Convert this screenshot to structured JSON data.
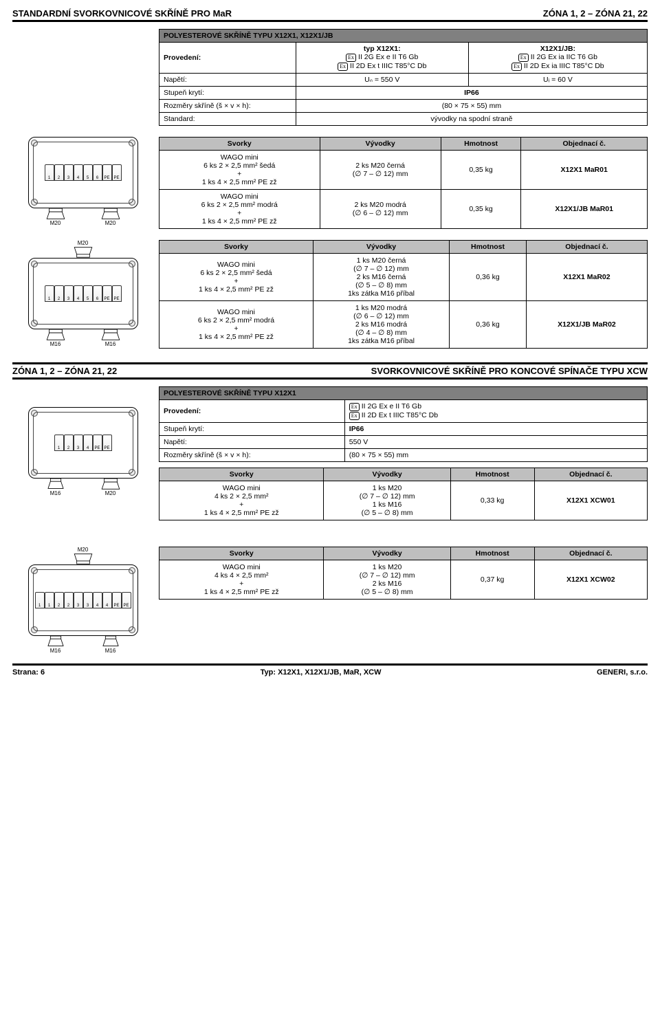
{
  "colors": {
    "header_gray": "#bfbfbf",
    "title_gray": "#808080",
    "border": "#000000",
    "bg": "#ffffff"
  },
  "topHeader": {
    "left": "STANDARDNÍ SVORKOVNICOVÉ SKŘÍNĚ PRO MaR",
    "right": "ZÓNA 1, 2 – ZÓNA 21, 22"
  },
  "specBox1": {
    "title": "POLYESTEROVÉ SKŘÍNĚ TYPU X12X1, X12X1/JB",
    "provedeni_label": "Provedení:",
    "col1_head": "typ X12X1:",
    "col1_l1": "II 2G Ex e II T6 Gb",
    "col1_l2": "II 2D Ex t  IIIC T85°C Db",
    "col2_head": "X12X1/JB:",
    "col2_l1": "II 2G Ex ia IIC T6 Gb",
    "col2_l2": "II 2D Ex ia IIIC T85°C Db",
    "napeti_label": "Napětí:",
    "napeti_v1": "Uₙ = 550 V",
    "napeti_v2": "Uᵢ = 60 V",
    "stupen_label": "Stupeň krytí:",
    "stupen_val": "IP66",
    "rozmery_label": "Rozměry skříně (š × v × h):",
    "rozmery_val": "(80 × 75 × 55) mm",
    "standard_label": "Standard:",
    "standard_val": "vývodky na spodní straně"
  },
  "diagram1": {
    "terminals": [
      "1",
      "2",
      "3",
      "4",
      "5",
      "6",
      "PE",
      "PE"
    ],
    "gland_b1": "M20",
    "gland_b2": "M20"
  },
  "diagram2": {
    "gland_top": "M20",
    "terminals": [
      "1",
      "2",
      "3",
      "4",
      "5",
      "6",
      "PE",
      "PE"
    ],
    "gland_b1": "M16",
    "gland_b2": "M16"
  },
  "dataHeaders": {
    "svorky": "Svorky",
    "vyvodky": "Vývodky",
    "hmotnost": "Hmotnost",
    "obj": "Objednací č."
  },
  "table1": {
    "rows": [
      {
        "svorky": "WAGO mini\n6 ks 2 × 2,5 mm² šedá\n+\n1 ks 4 × 2,5 mm² PE zž",
        "vyvodky": "2 ks M20 černá\n(∅ 7 – ∅ 12) mm",
        "hmotnost": "0,35 kg",
        "obj": "X12X1 MaR01"
      },
      {
        "svorky": "WAGO mini\n6 ks 2 × 2,5 mm² modrá\n+\n1 ks 4 × 2,5 mm² PE zž",
        "vyvodky": "2 ks M20 modrá\n(∅ 6 – ∅ 12) mm",
        "hmotnost": "0,35 kg",
        "obj": "X12X1/JB MaR01"
      }
    ]
  },
  "table2": {
    "rows": [
      {
        "svorky": "WAGO mini\n6 ks 2 × 2,5 mm² šedá\n+\n1 ks 4 × 2,5 mm² PE zž",
        "vyvodky": "1 ks M20 černá\n(∅ 7 – ∅ 12) mm\n2 ks M16 černá\n(∅ 5 – ∅ 8) mm\n1ks zátka M16 příbal",
        "hmotnost": "0,36 kg",
        "obj": "X12X1 MaR02"
      },
      {
        "svorky": "WAGO mini\n6 ks 2 × 2,5 mm² modrá\n+\n1 ks 4 × 2,5 mm² PE zž",
        "vyvodky": "1 ks M20 modrá\n(∅ 6 – ∅ 12) mm\n2 ks M16 modrá\n(∅ 4 – ∅ 8) mm\n1ks zátka M16 příbal",
        "hmotnost": "0,36 kg",
        "obj": "X12X1/JB MaR02"
      }
    ]
  },
  "midHeader": {
    "left": "ZÓNA 1, 2 – ZÓNA 21, 22",
    "right": "SVORKOVNICOVÉ SKŘÍNĚ PRO KONCOVÉ SPÍNAČE TYPU XCW"
  },
  "specBox2": {
    "title": "POLYESTEROVÉ SKŘÍNĚ TYPU X12X1",
    "provedeni_label": "Provedení:",
    "prov_l1": "II 2G Ex e II T6 Gb",
    "prov_l2": "II 2D Ex t  IIIC T85°C Db",
    "stupen_label": "Stupeň krytí:",
    "stupen_val": "IP66",
    "napeti_label": "Napětí:",
    "napeti_val": "550 V",
    "rozmery_label": "Rozměry skříně (š × v × h):",
    "rozmery_val": "(80 × 75 × 55) mm"
  },
  "diagram3": {
    "terminals": [
      "1",
      "2",
      "3",
      "4",
      "PE",
      "PE"
    ],
    "gland_b1": "M16",
    "gland_b2": "M20"
  },
  "diagram4": {
    "gland_top": "M20",
    "terminals": [
      "1",
      "1",
      "2",
      "2",
      "3",
      "3",
      "4",
      "4",
      "PE",
      "PE"
    ],
    "gland_b1": "M16",
    "gland_b2": "M16"
  },
  "table3": {
    "rows": [
      {
        "svorky": "WAGO mini\n4 ks 2 × 2,5 mm²\n+\n1 ks 4 × 2,5 mm² PE zž",
        "vyvodky": "1 ks M20\n(∅ 7 – ∅ 12) mm\n1 ks M16\n(∅ 5 – ∅ 8) mm",
        "hmotnost": "0,33 kg",
        "obj": "X12X1 XCW01"
      }
    ]
  },
  "table4": {
    "rows": [
      {
        "svorky": "WAGO mini\n4 ks 4 × 2,5 mm²\n+\n1 ks 4 × 2,5 mm² PE zž",
        "vyvodky": "1 ks M20\n(∅ 7 – ∅ 12) mm\n2 ks M16\n(∅ 5 – ∅ 8) mm",
        "hmotnost": "0,37 kg",
        "obj": "X12X1 XCW02"
      }
    ]
  },
  "footer": {
    "left": "Strana: 6",
    "mid": "Typ: X12X1, X12X1/JB, MaR, XCW",
    "right": "GENERI, s.r.o."
  }
}
